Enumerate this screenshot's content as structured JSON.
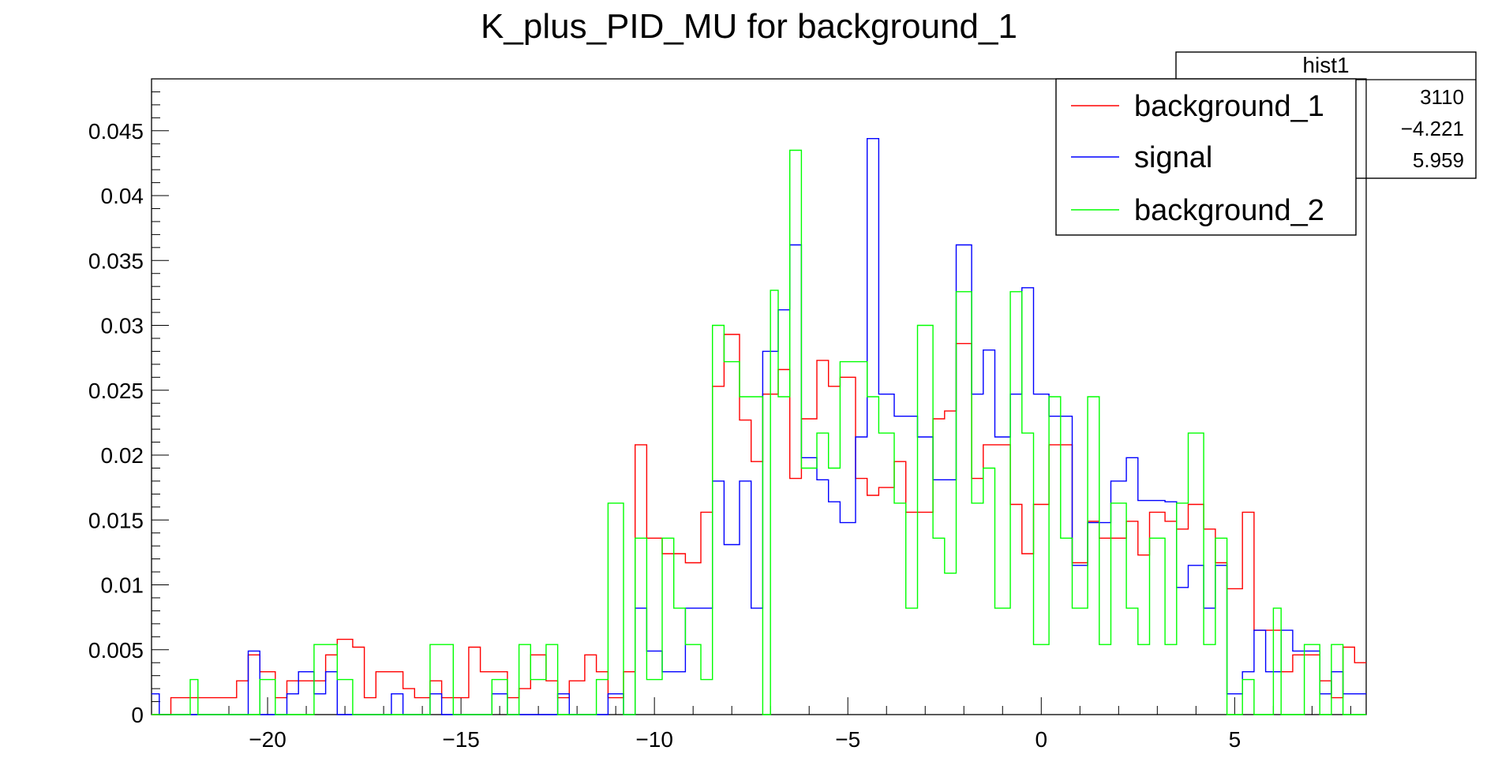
{
  "chart_data": {
    "type": "histogram",
    "title": "K_plus_PID_MU for background_1",
    "xlim": [
      -23,
      8.4
    ],
    "ylim": [
      0,
      0.049
    ],
    "bin_width": 0.25,
    "grid": false,
    "legend_position": "top-right",
    "x_ticks": [
      {
        "value": -20,
        "label": "−20"
      },
      {
        "value": -15,
        "label": "−15"
      },
      {
        "value": -10,
        "label": "−10"
      },
      {
        "value": -5,
        "label": "−5"
      },
      {
        "value": 0,
        "label": "0"
      },
      {
        "value": 5,
        "label": "5"
      }
    ],
    "y_ticks": [
      {
        "value": 0,
        "label": "0"
      },
      {
        "value": 0.005,
        "label": "0.005"
      },
      {
        "value": 0.01,
        "label": "0.01"
      },
      {
        "value": 0.015,
        "label": "0.015"
      },
      {
        "value": 0.02,
        "label": "0.02"
      },
      {
        "value": 0.025,
        "label": "0.025"
      },
      {
        "value": 0.03,
        "label": "0.03"
      },
      {
        "value": 0.035,
        "label": "0.035"
      },
      {
        "value": 0.04,
        "label": "0.04"
      },
      {
        "value": 0.045,
        "label": "0.045"
      }
    ],
    "stats_box": {
      "title": "hist1",
      "values": [
        "3110",
        "−4.221",
        "5.959"
      ]
    },
    "series": [
      {
        "name": "background_1",
        "color": "#ff0000",
        "bins": [
          [
            -23.0,
            0.0
          ],
          [
            -22.5,
            0.0013
          ],
          [
            -21.5,
            0.0013
          ],
          [
            -20.8,
            0.0026
          ],
          [
            -20.5,
            0.0046
          ],
          [
            -20.2,
            0.0033
          ],
          [
            -19.8,
            0.0013
          ],
          [
            -19.5,
            0.0026
          ],
          [
            -19.2,
            0.0026
          ],
          [
            -18.8,
            0.0026
          ],
          [
            -18.5,
            0.0046
          ],
          [
            -18.2,
            0.0058
          ],
          [
            -17.8,
            0.0052
          ],
          [
            -17.5,
            0.0013
          ],
          [
            -17.2,
            0.0033
          ],
          [
            -16.8,
            0.0033
          ],
          [
            -16.5,
            0.002
          ],
          [
            -16.2,
            0.0013
          ],
          [
            -15.8,
            0.0026
          ],
          [
            -15.5,
            0.0013
          ],
          [
            -15.2,
            0.0013
          ],
          [
            -14.8,
            0.0052
          ],
          [
            -14.5,
            0.0033
          ],
          [
            -14.2,
            0.0033
          ],
          [
            -13.8,
            0.0013
          ],
          [
            -13.5,
            0.002
          ],
          [
            -13.2,
            0.0046
          ],
          [
            -12.8,
            0.0026
          ],
          [
            -12.5,
            0.0013
          ],
          [
            -12.2,
            0.0026
          ],
          [
            -11.8,
            0.0046
          ],
          [
            -11.5,
            0.0033
          ],
          [
            -11.2,
            0.0013
          ],
          [
            -10.8,
            0.0033
          ],
          [
            -10.5,
            0.0208
          ],
          [
            -10.2,
            0.0136
          ],
          [
            -9.8,
            0.0124
          ],
          [
            -9.5,
            0.0124
          ],
          [
            -9.2,
            0.0117
          ],
          [
            -8.8,
            0.0156
          ],
          [
            -8.5,
            0.0253
          ],
          [
            -8.2,
            0.0293
          ],
          [
            -7.8,
            0.0227
          ],
          [
            -7.5,
            0.0195
          ],
          [
            -7.2,
            0.0247
          ],
          [
            -6.8,
            0.0266
          ],
          [
            -6.5,
            0.0182
          ],
          [
            -6.2,
            0.0228
          ],
          [
            -5.8,
            0.0273
          ],
          [
            -5.5,
            0.0253
          ],
          [
            -5.2,
            0.026
          ],
          [
            -4.8,
            0.0182
          ],
          [
            -4.5,
            0.0169
          ],
          [
            -4.2,
            0.0175
          ],
          [
            -3.8,
            0.0195
          ],
          [
            -3.5,
            0.0156
          ],
          [
            -3.2,
            0.0156
          ],
          [
            -2.8,
            0.0228
          ],
          [
            -2.5,
            0.0234
          ],
          [
            -2.2,
            0.0286
          ],
          [
            -1.8,
            0.0182
          ],
          [
            -1.5,
            0.0208
          ],
          [
            -1.2,
            0.0208
          ],
          [
            -0.8,
            0.0162
          ],
          [
            -0.5,
            0.0124
          ],
          [
            -0.2,
            0.0162
          ],
          [
            0.2,
            0.0208
          ],
          [
            0.5,
            0.0208
          ],
          [
            0.8,
            0.0117
          ],
          [
            1.2,
            0.0149
          ],
          [
            1.5,
            0.0136
          ],
          [
            1.8,
            0.0136
          ],
          [
            2.2,
            0.0149
          ],
          [
            2.5,
            0.0123
          ],
          [
            2.8,
            0.0156
          ],
          [
            3.2,
            0.0149
          ],
          [
            3.5,
            0.0143
          ],
          [
            3.8,
            0.0162
          ],
          [
            4.2,
            0.0143
          ],
          [
            4.5,
            0.0117
          ],
          [
            4.8,
            0.0097
          ],
          [
            5.2,
            0.0156
          ],
          [
            5.5,
            0.0065
          ],
          [
            5.8,
            0.0065
          ],
          [
            6.2,
            0.0033
          ],
          [
            6.5,
            0.0046
          ],
          [
            6.8,
            0.0046
          ],
          [
            7.2,
            0.0026
          ],
          [
            7.5,
            0.0013
          ],
          [
            7.8,
            0.0052
          ],
          [
            8.1,
            0.004
          ]
        ]
      },
      {
        "name": "signal",
        "color": "#0000ff",
        "bins": [
          [
            -23.0,
            0.0016
          ],
          [
            -22.8,
            0.0
          ],
          [
            -20.5,
            0.0049
          ],
          [
            -20.2,
            0.0
          ],
          [
            -19.5,
            0.0016
          ],
          [
            -19.2,
            0.0033
          ],
          [
            -18.8,
            0.0016
          ],
          [
            -18.5,
            0.0033
          ],
          [
            -18.2,
            0.0
          ],
          [
            -16.8,
            0.0016
          ],
          [
            -16.5,
            0.0
          ],
          [
            -15.8,
            0.0016
          ],
          [
            -15.5,
            0.0
          ],
          [
            -14.2,
            0.0016
          ],
          [
            -13.8,
            0.0
          ],
          [
            -12.5,
            0.0016
          ],
          [
            -12.2,
            0.0
          ],
          [
            -11.2,
            0.0016
          ],
          [
            -10.8,
            0.0
          ],
          [
            -10.5,
            0.0082
          ],
          [
            -10.2,
            0.0049
          ],
          [
            -9.8,
            0.0033
          ],
          [
            -9.2,
            0.0082
          ],
          [
            -8.8,
            0.0082
          ],
          [
            -8.5,
            0.018
          ],
          [
            -8.2,
            0.0131
          ],
          [
            -7.8,
            0.018
          ],
          [
            -7.5,
            0.0082
          ],
          [
            -7.2,
            0.028
          ],
          [
            -6.8,
            0.0312
          ],
          [
            -6.5,
            0.0362
          ],
          [
            -6.2,
            0.0198
          ],
          [
            -5.8,
            0.0181
          ],
          [
            -5.5,
            0.0164
          ],
          [
            -5.2,
            0.0148
          ],
          [
            -4.8,
            0.0214
          ],
          [
            -4.5,
            0.0444
          ],
          [
            -4.2,
            0.0247
          ],
          [
            -3.8,
            0.023
          ],
          [
            -3.5,
            0.023
          ],
          [
            -3.2,
            0.0214
          ],
          [
            -2.8,
            0.0181
          ],
          [
            -2.5,
            0.0181
          ],
          [
            -2.2,
            0.0362
          ],
          [
            -1.8,
            0.0247
          ],
          [
            -1.5,
            0.0281
          ],
          [
            -1.2,
            0.0214
          ],
          [
            -0.8,
            0.0247
          ],
          [
            -0.5,
            0.0329
          ],
          [
            -0.2,
            0.0247
          ],
          [
            0.2,
            0.023
          ],
          [
            0.5,
            0.023
          ],
          [
            0.8,
            0.0115
          ],
          [
            1.2,
            0.0148
          ],
          [
            1.5,
            0.0148
          ],
          [
            1.8,
            0.018
          ],
          [
            2.2,
            0.0198
          ],
          [
            2.5,
            0.0165
          ],
          [
            2.8,
            0.0165
          ],
          [
            3.2,
            0.0164
          ],
          [
            3.5,
            0.0098
          ],
          [
            3.8,
            0.0115
          ],
          [
            4.2,
            0.0082
          ],
          [
            4.5,
            0.0115
          ],
          [
            4.8,
            0.0016
          ],
          [
            5.2,
            0.0033
          ],
          [
            5.5,
            0.0065
          ],
          [
            5.8,
            0.0033
          ],
          [
            6.2,
            0.0065
          ],
          [
            6.5,
            0.0049
          ],
          [
            6.8,
            0.0049
          ],
          [
            7.2,
            0.0016
          ],
          [
            7.5,
            0.0033
          ],
          [
            7.8,
            0.0016
          ]
        ]
      },
      {
        "name": "background_2",
        "color": "#00ff00",
        "bins": [
          [
            -23.0,
            0.0
          ],
          [
            -22.0,
            0.0027
          ],
          [
            -21.8,
            0.0
          ],
          [
            -20.2,
            0.0027
          ],
          [
            -19.8,
            0.0
          ],
          [
            -18.8,
            0.0054
          ],
          [
            -18.2,
            0.0027
          ],
          [
            -17.8,
            0.0
          ],
          [
            -15.8,
            0.0054
          ],
          [
            -15.2,
            0.0
          ],
          [
            -14.2,
            0.0027
          ],
          [
            -13.8,
            0.0
          ],
          [
            -13.5,
            0.0054
          ],
          [
            -13.2,
            0.0027
          ],
          [
            -12.8,
            0.0054
          ],
          [
            -12.5,
            0.0
          ],
          [
            -11.5,
            0.0027
          ],
          [
            -11.2,
            0.0163
          ],
          [
            -10.8,
            0.0
          ],
          [
            -10.5,
            0.0136
          ],
          [
            -10.2,
            0.0027
          ],
          [
            -9.8,
            0.0136
          ],
          [
            -9.5,
            0.0082
          ],
          [
            -9.2,
            0.0054
          ],
          [
            -8.8,
            0.0027
          ],
          [
            -8.5,
            0.03
          ],
          [
            -8.2,
            0.0272
          ],
          [
            -7.8,
            0.0245
          ],
          [
            -7.2,
            0.0
          ],
          [
            -7.0,
            0.0327
          ],
          [
            -6.8,
            0.0245
          ],
          [
            -6.5,
            0.0435
          ],
          [
            -6.2,
            0.019
          ],
          [
            -5.8,
            0.0217
          ],
          [
            -5.5,
            0.019
          ],
          [
            -5.2,
            0.0272
          ],
          [
            -4.8,
            0.0272
          ],
          [
            -4.5,
            0.0245
          ],
          [
            -4.2,
            0.0217
          ],
          [
            -3.8,
            0.0163
          ],
          [
            -3.5,
            0.0082
          ],
          [
            -3.2,
            0.03
          ],
          [
            -2.8,
            0.0136
          ],
          [
            -2.5,
            0.0109
          ],
          [
            -2.2,
            0.0326
          ],
          [
            -1.8,
            0.0163
          ],
          [
            -1.5,
            0.019
          ],
          [
            -1.2,
            0.0082
          ],
          [
            -0.8,
            0.0326
          ],
          [
            -0.5,
            0.0217
          ],
          [
            -0.2,
            0.0054
          ],
          [
            0.2,
            0.0245
          ],
          [
            0.5,
            0.0136
          ],
          [
            0.8,
            0.0082
          ],
          [
            1.2,
            0.0245
          ],
          [
            1.5,
            0.0054
          ],
          [
            1.8,
            0.0163
          ],
          [
            2.2,
            0.0082
          ],
          [
            2.5,
            0.0054
          ],
          [
            2.8,
            0.0136
          ],
          [
            3.2,
            0.0054
          ],
          [
            3.5,
            0.0163
          ],
          [
            3.8,
            0.0217
          ],
          [
            4.2,
            0.0054
          ],
          [
            4.5,
            0.0136
          ],
          [
            4.8,
            0.0
          ],
          [
            5.2,
            0.0027
          ],
          [
            5.5,
            0.0
          ],
          [
            6.0,
            0.0082
          ],
          [
            6.2,
            0.0
          ],
          [
            6.8,
            0.0054
          ],
          [
            7.2,
            0.0
          ],
          [
            7.5,
            0.0054
          ],
          [
            7.8,
            0.0
          ]
        ]
      }
    ]
  }
}
